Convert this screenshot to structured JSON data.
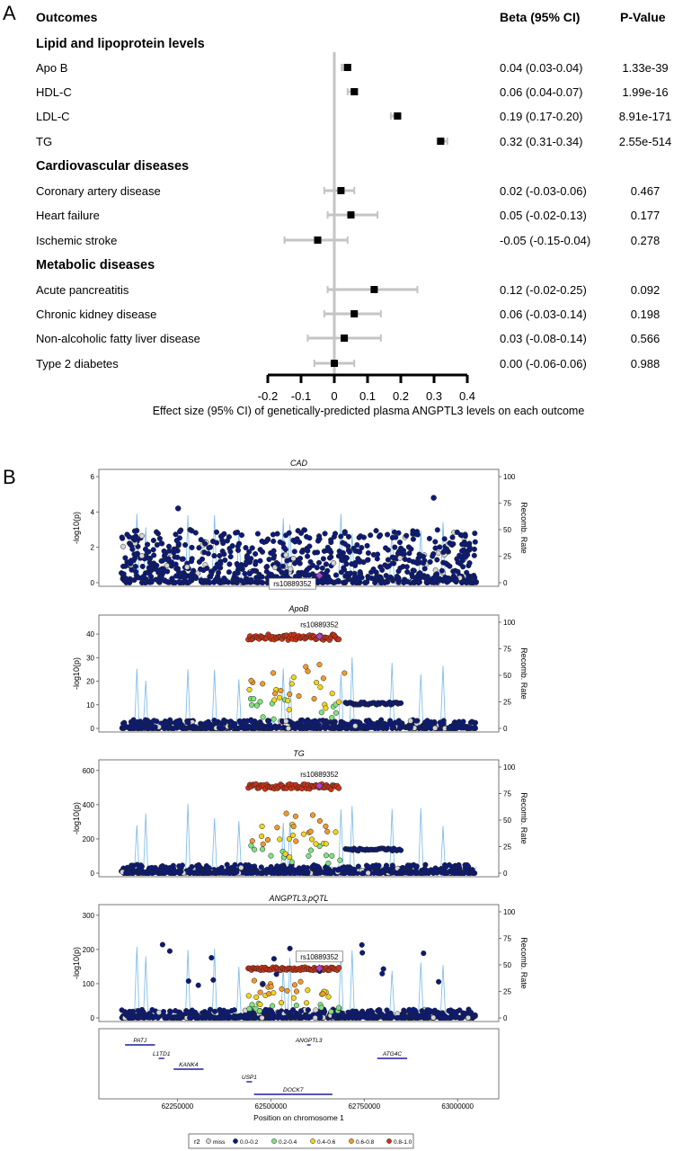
{
  "panel_labels": [
    "A",
    "B"
  ],
  "chart_data": [
    {
      "type": "forest",
      "headers": {
        "outcome": "Outcomes",
        "beta": "Beta (95% CI)",
        "pvalue": "P-Value"
      },
      "groups": [
        {
          "name": "Lipid and lipoprotein levels",
          "rows": [
            {
              "label": "Apo B",
              "beta": 0.04,
              "lo": 0.03,
              "hi": 0.04,
              "ci_text": "0.04 (0.03-0.04)",
              "p": "1.33e-39"
            },
            {
              "label": "HDL-C",
              "beta": 0.06,
              "lo": 0.04,
              "hi": 0.07,
              "ci_text": "0.06 (0.04-0.07)",
              "p": "1.99e-16"
            },
            {
              "label": "LDL-C",
              "beta": 0.19,
              "lo": 0.17,
              "hi": 0.2,
              "ci_text": "0.19 (0.17-0.20)",
              "p": "8.91e-171"
            },
            {
              "label": "TG",
              "beta": 0.32,
              "lo": 0.31,
              "hi": 0.34,
              "ci_text": "0.32 (0.31-0.34)",
              "p": "2.55e-514"
            }
          ]
        },
        {
          "name": "Cardiovascular diseases",
          "rows": [
            {
              "label": "Coronary artery disease",
              "beta": 0.02,
              "lo": -0.03,
              "hi": 0.06,
              "ci_text": "0.02 (-0.03-0.06)",
              "p": "0.467"
            },
            {
              "label": "Heart failure",
              "beta": 0.05,
              "lo": -0.02,
              "hi": 0.13,
              "ci_text": "0.05 (-0.02-0.13)",
              "p": "0.177"
            },
            {
              "label": "Ischemic stroke",
              "beta": -0.05,
              "lo": -0.15,
              "hi": 0.04,
              "ci_text": "-0.05 (-0.15-0.04)",
              "p": "0.278"
            }
          ]
        },
        {
          "name": "Metabolic diseases",
          "rows": [
            {
              "label": "Acute pancreatitis",
              "beta": 0.12,
              "lo": -0.02,
              "hi": 0.25,
              "ci_text": "0.12 (-0.02-0.25)",
              "p": "0.092"
            },
            {
              "label": "Chronic kidney disease",
              "beta": 0.06,
              "lo": -0.03,
              "hi": 0.14,
              "ci_text": "0.06 (-0.03-0.14)",
              "p": "0.198"
            },
            {
              "label": "Non-alcoholic fatty liver disease",
              "beta": 0.03,
              "lo": -0.08,
              "hi": 0.14,
              "ci_text": "0.03 (-0.08-0.14)",
              "p": "0.566"
            },
            {
              "label": "Type 2 diabetes",
              "beta": 0.0,
              "lo": -0.06,
              "hi": 0.06,
              "ci_text": "0.00 (-0.06-0.06)",
              "p": "0.988"
            }
          ]
        }
      ],
      "xlim": [
        -0.2,
        0.4
      ],
      "xticks": [
        -0.2,
        -0.1,
        0,
        0.1,
        0.2,
        0.3,
        0.4
      ],
      "xtick_labels": [
        "-0.2",
        "-0.1",
        "0",
        "0.1",
        "0.2",
        "0.3",
        "0.4"
      ],
      "xlabel": "Effect size (95% CI) of genetically-predicted plasma ANGPTL3 levels on each outcome",
      "colors": {
        "point": "#000000",
        "ci": "#c4c4c4",
        "zero_line": "#c4c4c4"
      }
    },
    {
      "type": "scatter",
      "subtype": "regional-association",
      "ylabel": "-log10(p)",
      "y2label": "Recomb. Rate",
      "y2ticks": [
        0,
        25,
        50,
        75,
        100
      ],
      "lead_snp": "rs10889352",
      "panels": [
        {
          "title": "CAD",
          "ylim": [
            0,
            6
          ],
          "yticks": [
            0,
            2,
            4,
            6
          ],
          "lead_y": 0.4,
          "note": "background null association, max around 4.8"
        },
        {
          "title": "ApoB",
          "ylim": [
            0,
            45
          ],
          "yticks": [
            0,
            10,
            20,
            30,
            40
          ],
          "lead_y": 39
        },
        {
          "title": "TG",
          "ylim": [
            0,
            620
          ],
          "yticks": [
            0,
            200,
            400,
            600
          ],
          "lead_y": 510
        },
        {
          "title": "ANGPTL3.pQTL",
          "ylim": [
            0,
            310
          ],
          "yticks": [
            0,
            100,
            200,
            300
          ],
          "lead_y": 145
        }
      ],
      "xlim": [
        62100000,
        63100000
      ],
      "xticks": [
        62250000,
        62500000,
        62750000,
        63000000
      ],
      "xtick_labels": [
        "62250000",
        "62500000",
        "62750000",
        "63000000"
      ],
      "xlabel": "Position on chromosome 1",
      "genes": [
        {
          "name": "PATJ",
          "start": 62110000,
          "end": 62190000,
          "row": 0
        },
        {
          "name": "ANGPTL3",
          "start": 62597000,
          "end": 62605000,
          "row": 0
        },
        {
          "name": "L1TD1",
          "start": 62200000,
          "end": 62215000,
          "row": 1
        },
        {
          "name": "ATG4C",
          "start": 62785000,
          "end": 62865000,
          "row": 1
        },
        {
          "name": "KANK4",
          "start": 62240000,
          "end": 62320000,
          "row": 2
        },
        {
          "name": "USP1",
          "start": 62435000,
          "end": 62450000,
          "row": 3
        },
        {
          "name": "DOCK7",
          "start": 62455000,
          "end": 62665000,
          "row": 4
        }
      ],
      "legend": {
        "title": "r2",
        "items": [
          {
            "label": "miss",
            "color": "#d4d4d4"
          },
          {
            "label": "0.0-0.2",
            "color": "#0b1a7a"
          },
          {
            "label": "0.2-0.4",
            "color": "#7ee37e"
          },
          {
            "label": "0.4-0.6",
            "color": "#f2d51a"
          },
          {
            "label": "0.6-0.8",
            "color": "#f29a2a"
          },
          {
            "label": "0.8-1.0",
            "color": "#cc3316"
          }
        ]
      },
      "colors": {
        "recomb": "#76b8ec",
        "lead": "#b341d9"
      }
    }
  ]
}
